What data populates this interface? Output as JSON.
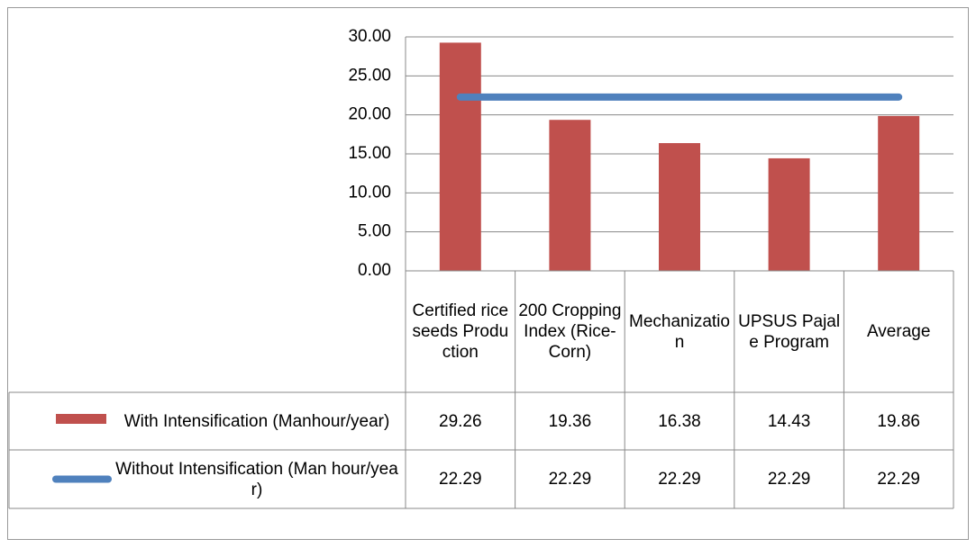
{
  "chart_data": {
    "type": "bar",
    "categories": [
      "Certified rice seeds Production",
      "200 Cropping Index (Rice-Corn)",
      "Mechanization",
      "UPSUS Pajale Program",
      "Average"
    ],
    "series": [
      {
        "name": "With Intensification (Manhour/year)",
        "color": "#c0504d",
        "type": "bar",
        "values": [
          29.26,
          19.36,
          16.38,
          14.43,
          19.86
        ]
      },
      {
        "name": "Without Intensification (Man hour/year)",
        "color": "#4f81bd",
        "type": "line",
        "values": [
          22.29,
          22.29,
          22.29,
          22.29,
          22.29
        ]
      }
    ],
    "ylim": [
      0,
      30
    ],
    "yticks": [
      {
        "value": 0,
        "label": "0.00"
      },
      {
        "value": 5,
        "label": "5.00"
      },
      {
        "value": 10,
        "label": "10.00"
      },
      {
        "value": 15,
        "label": "15.00"
      },
      {
        "value": 20,
        "label": "20.00"
      },
      {
        "value": 25,
        "label": "25.00"
      },
      {
        "value": 30,
        "label": "30.00"
      }
    ],
    "grid": true,
    "data_table": true
  }
}
